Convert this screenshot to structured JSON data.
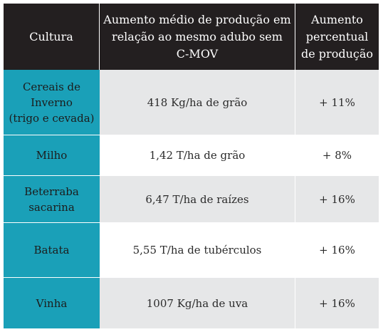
{
  "table": {
    "headers": [
      "Cultura",
      "Aumento médio de produção em\nrelação ao mesmo adubo sem\nC-MOV",
      "Aumento\npercentual\nde produção"
    ],
    "rows": [
      {
        "crop": "Cereais de\nInverno\n(trigo e cevada)",
        "increase": "418 Kg/ha de grão",
        "percent": "+ 11%"
      },
      {
        "crop": "Milho",
        "increase": "1,42 T/ha de grão",
        "percent": "+ 8%"
      },
      {
        "crop": "Beterraba\nsacarina",
        "increase": "6,47 T/ha de raízes",
        "percent": "+ 16%"
      },
      {
        "crop": "Batata",
        "increase": "5,55 T/ha de tubérculos",
        "percent": "+ 16%"
      },
      {
        "crop": "Vinha",
        "increase": "1007 Kg/ha de uva",
        "percent": "+ 16%"
      }
    ]
  },
  "colors": {
    "header_bg": "#231f20",
    "crop_bg": "#1aa0b8",
    "stripe_bg": "#e6e7e8"
  }
}
